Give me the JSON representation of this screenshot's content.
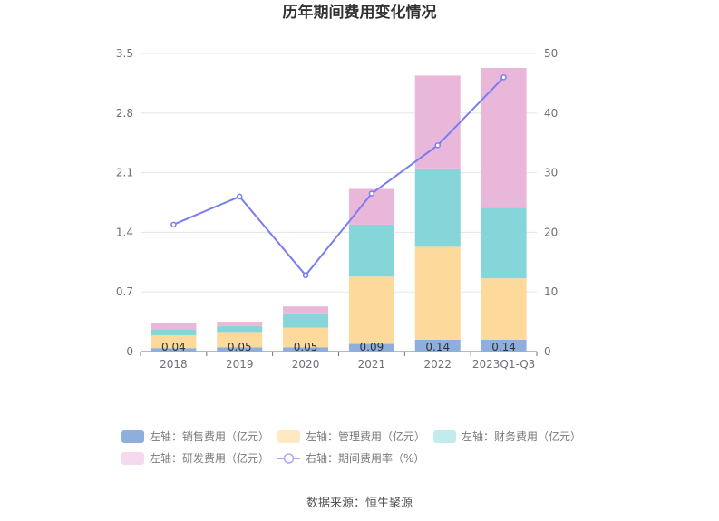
{
  "chart_data": {
    "type": "bar",
    "title": "历年期间费用变化情况",
    "categories": [
      "2018",
      "2019",
      "2020",
      "2021",
      "2022",
      "2023Q1-Q3"
    ],
    "left_axis": {
      "min": 0,
      "max": 3.5,
      "ticks": [
        "0",
        "0.7",
        "1.4",
        "2.1",
        "2.8",
        "3.5"
      ]
    },
    "right_axis": {
      "min": 0,
      "max": 50,
      "ticks": [
        "0",
        "10",
        "20",
        "30",
        "40",
        "50"
      ]
    },
    "series": [
      {
        "name": "左轴：销售费用（亿元）",
        "type": "bar",
        "axis": "left",
        "color": "#8eaedc",
        "values": [
          0.04,
          0.05,
          0.05,
          0.09,
          0.14,
          0.14
        ],
        "labels": [
          "0.04",
          "0.05",
          "0.05",
          "0.09",
          "0.14",
          "0.14"
        ]
      },
      {
        "name": "左轴：管理费用（亿元）",
        "type": "bar",
        "axis": "left",
        "color": "#fdd99b",
        "values": [
          0.15,
          0.18,
          0.23,
          0.79,
          1.09,
          0.72
        ]
      },
      {
        "name": "左轴：财务费用（亿元）",
        "type": "bar",
        "axis": "left",
        "color": "#86d6d9",
        "values": [
          0.07,
          0.07,
          0.17,
          0.61,
          0.92,
          0.83
        ]
      },
      {
        "name": "左轴：研发费用（亿元）",
        "type": "bar",
        "axis": "left",
        "color": "#e8b7d9",
        "values": [
          0.07,
          0.05,
          0.08,
          0.42,
          1.09,
          1.64
        ]
      },
      {
        "name": "右轴：期间费用率（%）",
        "type": "line",
        "axis": "right",
        "color": "#7b7cf0",
        "values": [
          21.3,
          26.0,
          12.8,
          26.5,
          34.6,
          46.0
        ]
      }
    ]
  },
  "legend": {
    "items": [
      {
        "label": "左轴：销售费用（亿元）",
        "color": "#8eaedc",
        "kind": "bar"
      },
      {
        "label": "左轴：管理费用（亿元）",
        "color": "#ffe8c2",
        "kind": "bar"
      },
      {
        "label": "左轴：财务费用（亿元）",
        "color": "#c1ebec",
        "kind": "bar"
      },
      {
        "label": "左轴：研发费用（亿元）",
        "color": "#f5d9ec",
        "kind": "bar"
      },
      {
        "label": "右轴：期间费用率（%）",
        "color": "#a9aaf5",
        "kind": "line"
      }
    ]
  },
  "source": "数据来源：恒生聚源"
}
